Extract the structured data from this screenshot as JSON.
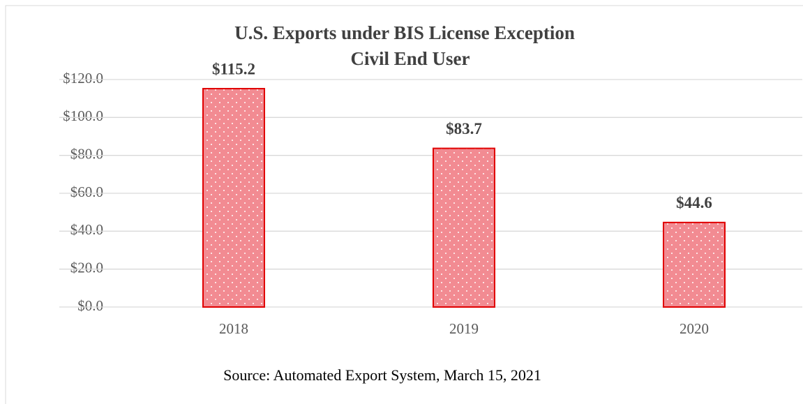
{
  "chart_data": {
    "type": "bar",
    "title": [
      "U.S. Exports under BIS License Exception",
      "Civil End User"
    ],
    "source": "Source: Automated Export System, March 15, 2021",
    "categories": [
      "2018",
      "2019",
      "2020"
    ],
    "values": [
      115.2,
      83.7,
      44.6
    ],
    "value_labels": [
      "$115.2",
      "$83.7",
      "$44.6"
    ],
    "color": "#f28b92",
    "edge_color": "#e00000",
    "ylim": [
      0,
      120
    ],
    "yticks": [
      {
        "value": 0,
        "label": "$0.0"
      },
      {
        "value": 20,
        "label": "$20.0"
      },
      {
        "value": 40,
        "label": "$40.0"
      },
      {
        "value": 60,
        "label": "$60.0"
      },
      {
        "value": 80,
        "label": "$80.0"
      },
      {
        "value": 100,
        "label": "$100.0"
      },
      {
        "value": 120,
        "label": "$120.0"
      }
    ],
    "grid": true
  }
}
